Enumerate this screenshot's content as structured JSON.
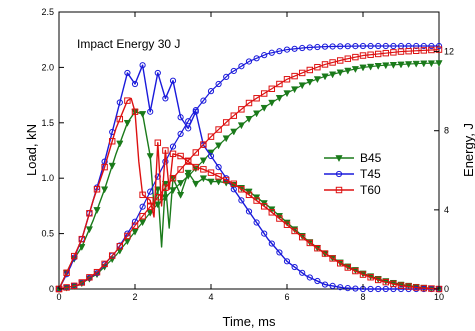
{
  "chart_data": {
    "type": "line",
    "annotation": "Impact Energy 30 J",
    "xlabel": "Time, ms",
    "ylabel": "Load, kN",
    "y2label": "Energy, J",
    "xlim": [
      0,
      10
    ],
    "ylim": [
      0,
      2.5
    ],
    "y2lim": [
      0,
      14
    ],
    "xticks": [
      "0",
      "2",
      "4",
      "6",
      "8",
      "10"
    ],
    "yticks": [
      "0",
      "0.5",
      "1.0",
      "1.5",
      "2.0",
      "2.5"
    ],
    "y2ticks": [
      "0",
      "4",
      "8",
      "12"
    ],
    "grid": false,
    "legend_position": "right-middle",
    "colors": {
      "B45": "#1a7a1a",
      "T45": "#1a1adb",
      "T60": "#dd1111"
    },
    "series": [
      {
        "name": "B45",
        "marker": "triangle-down",
        "load": {
          "x": [
            0,
            0.3,
            0.6,
            0.9,
            1.2,
            1.5,
            1.8,
            2.0,
            2.2,
            2.4,
            2.5,
            2.6,
            2.7,
            2.8,
            2.9,
            3.0,
            3.2,
            3.4,
            3.6,
            3.8,
            4.0,
            4.2,
            4.4,
            4.7,
            5.0,
            5.5,
            6.0,
            6.5,
            7.0,
            7.5,
            8.0,
            8.5,
            9.0,
            9.5,
            10.0
          ],
          "y": [
            0,
            0.22,
            0.38,
            0.62,
            0.9,
            1.22,
            1.5,
            1.6,
            1.58,
            1.2,
            0.75,
            0.9,
            0.38,
            0.95,
            0.55,
            1.0,
            0.85,
            1.05,
            0.95,
            1.0,
            0.97,
            0.97,
            0.96,
            0.93,
            0.88,
            0.75,
            0.6,
            0.45,
            0.32,
            0.22,
            0.14,
            0.08,
            0.04,
            0.015,
            0.0
          ]
        },
        "energy": {
          "x": [
            0,
            0.5,
            1.0,
            1.5,
            2.0,
            2.5,
            3.0,
            3.5,
            4.0,
            4.5,
            5.0,
            5.5,
            6.0,
            6.5,
            7.0,
            7.5,
            8.0,
            8.5,
            9.0,
            9.5,
            10.0
          ],
          "y": [
            0,
            0.18,
            0.75,
            1.7,
            2.9,
            4.1,
            5.0,
            5.9,
            6.9,
            7.8,
            8.6,
            9.3,
            9.9,
            10.4,
            10.75,
            11.0,
            11.2,
            11.3,
            11.35,
            11.4,
            11.42
          ]
        }
      },
      {
        "name": "T45",
        "marker": "circle",
        "load": {
          "x": [
            0,
            0.3,
            0.6,
            0.9,
            1.2,
            1.5,
            1.8,
            2.0,
            2.2,
            2.4,
            2.6,
            2.8,
            3.0,
            3.2,
            3.4,
            3.6,
            3.8,
            4.0,
            4.3,
            4.6,
            5.0,
            5.5,
            6.0,
            6.5,
            7.0,
            7.5,
            8.0,
            8.5,
            9.0,
            9.5,
            10.0
          ],
          "y": [
            0,
            0.2,
            0.45,
            0.8,
            1.15,
            1.55,
            1.95,
            1.85,
            2.02,
            1.6,
            1.95,
            1.72,
            1.88,
            1.55,
            1.45,
            1.6,
            1.3,
            1.2,
            1.05,
            0.9,
            0.7,
            0.45,
            0.25,
            0.12,
            0.04,
            0.01,
            0,
            0,
            0,
            0,
            0
          ]
        },
        "energy": {
          "x": [
            0,
            0.5,
            1.0,
            1.5,
            2.0,
            2.5,
            3.0,
            3.5,
            4.0,
            4.5,
            5.0,
            5.5,
            6.0,
            6.5,
            7.0,
            7.5,
            8.0,
            8.5,
            9.0,
            9.5,
            10.0
          ],
          "y": [
            0,
            0.2,
            0.8,
            1.9,
            3.4,
            5.3,
            7.2,
            8.8,
            10.0,
            10.9,
            11.5,
            11.9,
            12.1,
            12.2,
            12.25,
            12.27,
            12.28,
            12.28,
            12.28,
            12.28,
            12.28
          ]
        }
      },
      {
        "name": "T60",
        "marker": "square",
        "load": {
          "x": [
            0,
            0.3,
            0.6,
            0.9,
            1.2,
            1.5,
            1.8,
            1.9,
            2.0,
            2.1,
            2.2,
            2.4,
            2.5,
            2.6,
            2.7,
            2.8,
            2.9,
            3.0,
            3.2,
            3.4,
            3.6,
            3.8,
            4.0,
            4.3,
            4.6,
            5.0,
            5.5,
            6.0,
            6.5,
            7.0,
            7.5,
            8.0,
            8.5,
            9.0,
            9.5,
            10.0
          ],
          "y": [
            0,
            0.22,
            0.45,
            0.8,
            1.1,
            1.45,
            1.7,
            1.72,
            1.6,
            1.15,
            0.85,
            0.8,
            0.65,
            1.32,
            0.75,
            1.25,
            0.9,
            1.22,
            1.2,
            1.15,
            1.1,
            1.08,
            1.05,
            1.0,
            0.95,
            0.85,
            0.72,
            0.58,
            0.44,
            0.32,
            0.21,
            0.13,
            0.07,
            0.03,
            0.01,
            0
          ]
        },
        "energy": {
          "x": [
            0,
            0.5,
            1.0,
            1.5,
            2.0,
            2.5,
            3.0,
            3.5,
            4.0,
            4.5,
            5.0,
            5.5,
            6.0,
            6.5,
            7.0,
            7.5,
            8.0,
            8.5,
            9.0,
            9.5,
            10.0
          ],
          "y": [
            0,
            0.2,
            0.85,
            1.9,
            3.2,
            4.4,
            5.6,
            6.7,
            7.7,
            8.6,
            9.4,
            10.0,
            10.6,
            11.0,
            11.35,
            11.6,
            11.8,
            11.9,
            12.0,
            12.05,
            12.1
          ]
        }
      }
    ]
  }
}
